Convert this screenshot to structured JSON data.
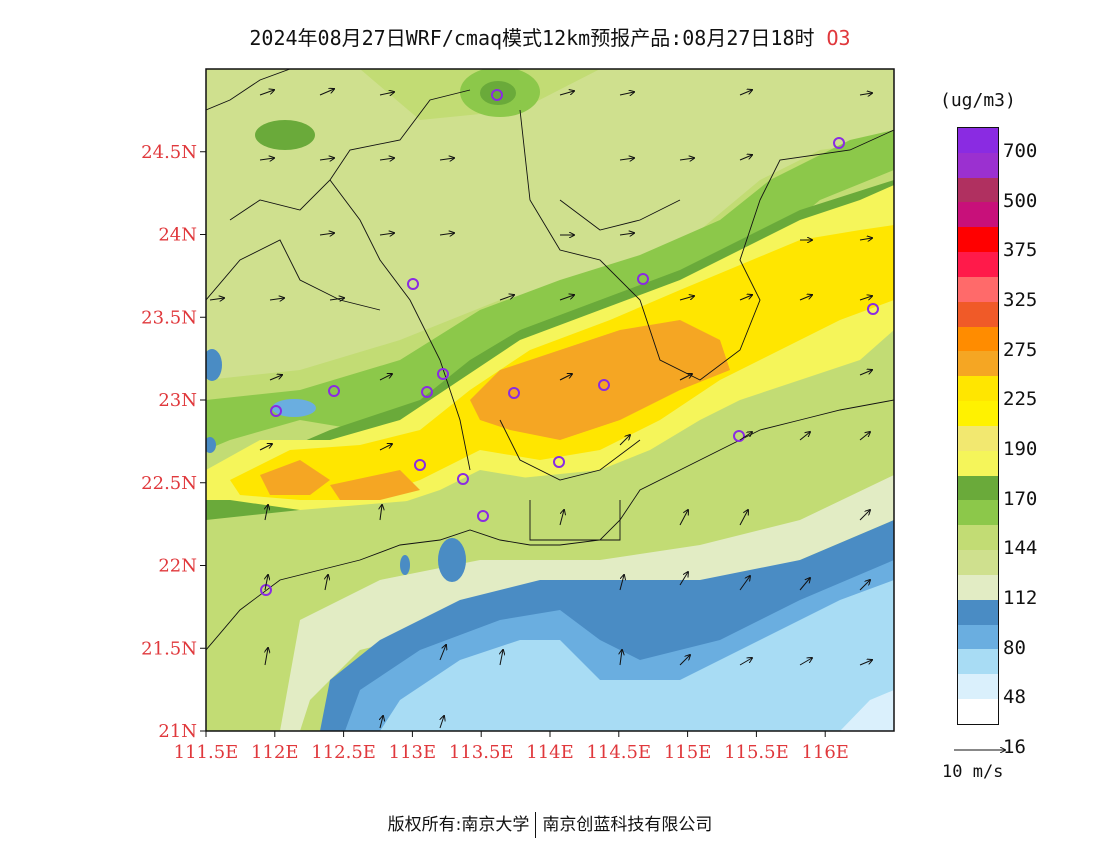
{
  "title": {
    "main": "2024年08月27日WRF/cmaq模式12km预报产品:08月27日18时",
    "species": "O3"
  },
  "axes": {
    "y_ticks": [
      "24.5N",
      "24N",
      "23.5N",
      "23N",
      "22.5N",
      "22N",
      "21.5N",
      "21N"
    ],
    "y_values": [
      24.5,
      24,
      23.5,
      23,
      22.5,
      22,
      21.5,
      21
    ],
    "x_ticks": [
      "111.5E",
      "112E",
      "112.5E",
      "113E",
      "113.5E",
      "114E",
      "114.5E",
      "115E",
      "115.5E",
      "116E"
    ],
    "x_values": [
      111.5,
      112,
      112.5,
      113,
      113.5,
      114,
      114.5,
      115,
      115.5,
      116
    ],
    "lon_range": [
      111.5,
      116.5
    ],
    "lat_range": [
      21,
      25
    ]
  },
  "colorbar": {
    "unit": "(ug/m3)",
    "labels": [
      "700",
      "500",
      "375",
      "325",
      "275",
      "225",
      "190",
      "170",
      "144",
      "112",
      "80",
      "48",
      "16"
    ],
    "colors": [
      "#8a2be2",
      "#9b30d0",
      "#b03060",
      "#c8107a",
      "#ff0000",
      "#ff1a4a",
      "#ff6a6a",
      "#f05a28",
      "#ff8c00",
      "#f5a623",
      "#ffe600",
      "#fff200",
      "#f2e870",
      "#f5f55a",
      "#6aaa3a",
      "#8cc84a",
      "#c2dc74",
      "#cfe08e",
      "#e2ecc4",
      "#4a8cc4",
      "#6aaee0",
      "#a8dcf4",
      "#daf0fc",
      "#ffffff"
    ]
  },
  "vector_scale": {
    "label": "10 m/s"
  },
  "footer": {
    "left": "版权所有:南京大学",
    "right": "南京创蓝科技有限公司"
  }
}
